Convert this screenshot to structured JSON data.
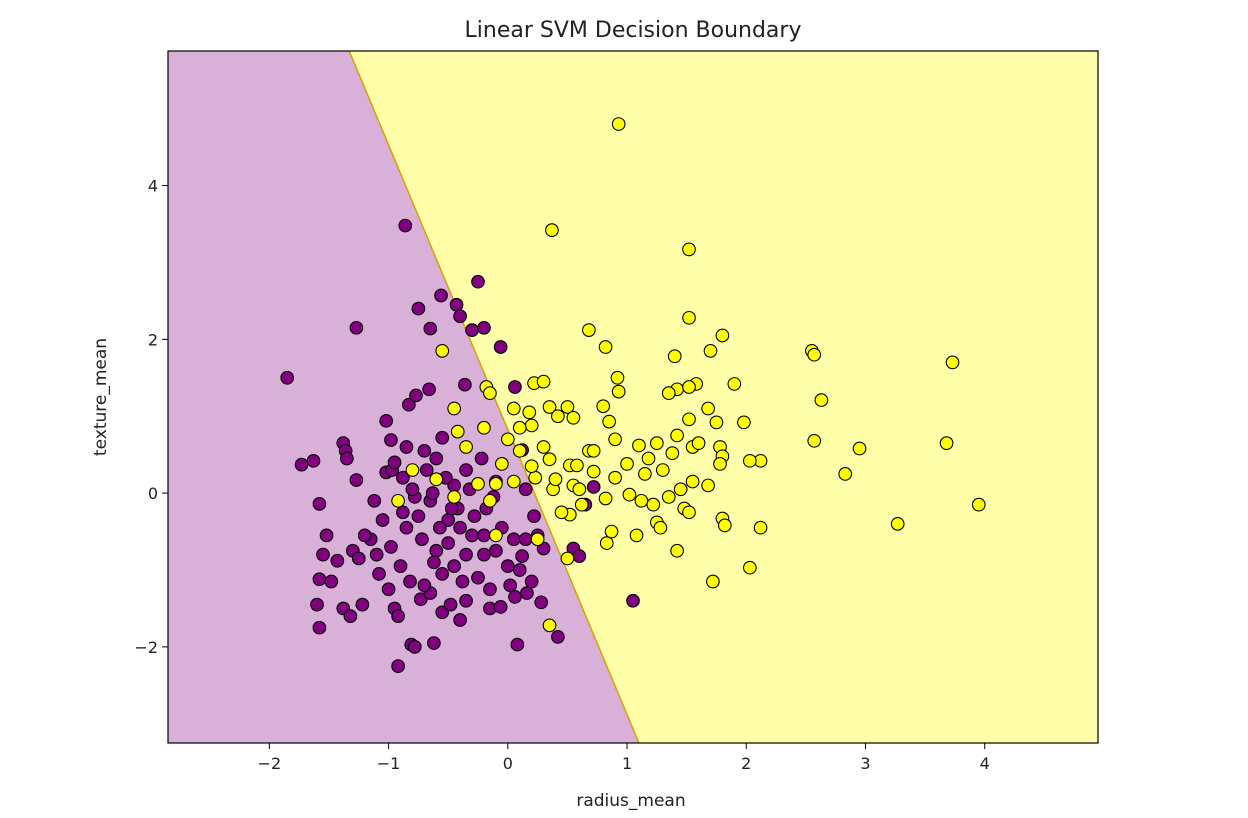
{
  "chart_data": {
    "type": "scatter",
    "title": "Linear SVM Decision Boundary",
    "xlabel": "radius_mean",
    "ylabel": "texture_mean",
    "xlim": [
      -2.85,
      4.95
    ],
    "ylim": [
      -3.25,
      5.75
    ],
    "xticks": [
      -2,
      -1,
      0,
      1,
      2,
      3,
      4
    ],
    "yticks": [
      -2,
      0,
      2,
      4
    ],
    "xtick_labels": [
      "−2",
      "−1",
      "0",
      "1",
      "2",
      "3",
      "4"
    ],
    "ytick_labels": [
      "−2",
      "0",
      "2",
      "4"
    ],
    "grid": false,
    "decision_boundary": {
      "type": "line",
      "points": [
        [
          -1.33,
          5.75
        ],
        [
          1.1,
          -3.25
        ]
      ]
    },
    "colors": {
      "class_0_point": "#800080",
      "class_1_point": "#ffff00",
      "class_0_region": "#d8b0d8",
      "class_1_region": "#ffffaa",
      "edge": "#000000"
    },
    "series": [
      {
        "class": 0,
        "points": [
          [
            -1.85,
            1.5
          ],
          [
            -0.86,
            3.48
          ],
          [
            -0.25,
            2.75
          ],
          [
            -0.56,
            2.57
          ],
          [
            -0.43,
            2.45
          ],
          [
            -0.75,
            2.4
          ],
          [
            -1.27,
            2.15
          ],
          [
            -0.65,
            2.14
          ],
          [
            -0.3,
            2.12
          ],
          [
            -0.2,
            2.15
          ],
          [
            -0.4,
            2.3
          ],
          [
            -0.06,
            1.9
          ],
          [
            -0.66,
            1.35
          ],
          [
            -0.83,
            1.15
          ],
          [
            -0.77,
            1.27
          ],
          [
            -0.36,
            1.41
          ],
          [
            0.06,
            1.38
          ],
          [
            -1.02,
            0.94
          ],
          [
            -1.38,
            0.65
          ],
          [
            -1.36,
            0.55
          ],
          [
            -1.63,
            0.42
          ],
          [
            -1.73,
            0.37
          ],
          [
            -1.35,
            0.45
          ],
          [
            -0.98,
            0.69
          ],
          [
            -1.02,
            0.27
          ],
          [
            -0.97,
            0.3
          ],
          [
            -1.27,
            0.17
          ],
          [
            -1.58,
            -0.14
          ],
          [
            -1.52,
            -0.55
          ],
          [
            -1.55,
            -0.8
          ],
          [
            -1.58,
            -1.12
          ],
          [
            -1.48,
            -1.15
          ],
          [
            -1.6,
            -1.45
          ],
          [
            -1.58,
            -1.75
          ],
          [
            -1.38,
            -1.5
          ],
          [
            -1.32,
            -1.6
          ],
          [
            -1.22,
            -1.45
          ],
          [
            -1.43,
            -0.88
          ],
          [
            -1.3,
            -0.75
          ],
          [
            -1.25,
            -0.85
          ],
          [
            -1.15,
            -0.6
          ],
          [
            -1.08,
            -1.05
          ],
          [
            -0.95,
            -1.5
          ],
          [
            -0.92,
            -1.6
          ],
          [
            -0.81,
            -1.97
          ],
          [
            -0.78,
            -2.0
          ],
          [
            -0.92,
            -2.25
          ],
          [
            -0.62,
            -1.95
          ],
          [
            -0.73,
            -1.38
          ],
          [
            -0.65,
            -1.3
          ],
          [
            -0.55,
            -1.55
          ],
          [
            -0.48,
            -1.45
          ],
          [
            -0.4,
            -1.65
          ],
          [
            -0.35,
            -1.4
          ],
          [
            -0.15,
            -1.5
          ],
          [
            -0.06,
            -1.48
          ],
          [
            0.06,
            -1.35
          ],
          [
            0.16,
            -1.3
          ],
          [
            0.08,
            -1.97
          ],
          [
            0.42,
            -1.87
          ],
          [
            0.28,
            -1.42
          ],
          [
            0.2,
            -1.15
          ],
          [
            0.1,
            -1.0
          ],
          [
            0.12,
            -0.82
          ],
          [
            0.25,
            -0.55
          ],
          [
            0.55,
            -0.72
          ],
          [
            0.6,
            -0.82
          ],
          [
            -0.85,
            -0.45
          ],
          [
            -0.75,
            -0.3
          ],
          [
            -0.65,
            -0.1
          ],
          [
            -0.5,
            -0.35
          ],
          [
            -0.45,
            0.1
          ],
          [
            -0.35,
            0.3
          ],
          [
            -0.3,
            -0.55
          ],
          [
            -0.2,
            -0.8
          ],
          [
            -0.18,
            -0.2
          ],
          [
            -0.1,
            0.15
          ],
          [
            -0.05,
            -0.45
          ],
          [
            0.0,
            -0.95
          ],
          [
            0.05,
            -0.6
          ],
          [
            0.12,
            0.56
          ],
          [
            0.15,
            0.05
          ],
          [
            -0.55,
            0.72
          ],
          [
            -0.7,
            0.55
          ],
          [
            -0.85,
            0.6
          ],
          [
            -0.95,
            0.4
          ],
          [
            -0.88,
            0.2
          ],
          [
            -0.78,
            -0.05
          ],
          [
            -0.72,
            -0.6
          ],
          [
            -0.6,
            -0.75
          ],
          [
            -0.55,
            -1.05
          ],
          [
            -0.45,
            -0.95
          ],
          [
            -0.35,
            -0.8
          ],
          [
            -0.25,
            -1.1
          ],
          [
            -0.15,
            -1.25
          ],
          [
            -1.12,
            -0.1
          ],
          [
            -1.05,
            -0.35
          ],
          [
            -0.98,
            -0.7
          ],
          [
            -0.9,
            -0.95
          ],
          [
            -0.82,
            -1.15
          ],
          [
            -0.7,
            -1.2
          ],
          [
            -0.62,
            -0.9
          ],
          [
            -0.5,
            -0.65
          ],
          [
            -0.4,
            -0.45
          ],
          [
            -0.28,
            -0.3
          ],
          [
            -0.2,
            -0.55
          ],
          [
            -0.1,
            -0.75
          ],
          [
            -1.2,
            -0.55
          ],
          [
            -1.1,
            -0.8
          ],
          [
            -1.0,
            -1.25
          ],
          [
            -0.88,
            -0.25
          ],
          [
            -0.8,
            0.05
          ],
          [
            -0.68,
            0.3
          ],
          [
            -0.6,
            0.45
          ],
          [
            -0.52,
            0.2
          ],
          [
            -0.42,
            -0.2
          ],
          [
            -0.32,
            0.05
          ],
          [
            -0.22,
            0.45
          ],
          [
            -0.12,
            -0.05
          ],
          [
            0.02,
            -1.2
          ],
          [
            0.15,
            -0.6
          ],
          [
            0.3,
            -0.72
          ],
          [
            0.22,
            -0.3
          ],
          [
            1.05,
            -1.4
          ],
          [
            0.72,
            0.08
          ],
          [
            0.65,
            -0.15
          ],
          [
            -0.63,
            0.0
          ],
          [
            -0.57,
            -0.45
          ],
          [
            -0.47,
            -0.2
          ],
          [
            -0.38,
            -1.15
          ]
        ]
      },
      {
        "class": 1,
        "points": [
          [
            0.93,
            4.8
          ],
          [
            0.37,
            3.42
          ],
          [
            1.52,
            3.17
          ],
          [
            -0.55,
            1.85
          ],
          [
            0.68,
            2.12
          ],
          [
            0.82,
            1.9
          ],
          [
            0.92,
            1.5
          ],
          [
            1.52,
            2.28
          ],
          [
            1.8,
            2.05
          ],
          [
            1.4,
            1.78
          ],
          [
            1.7,
            1.85
          ],
          [
            1.9,
            1.42
          ],
          [
            2.55,
            1.85
          ],
          [
            2.57,
            1.8
          ],
          [
            3.73,
            1.7
          ],
          [
            2.63,
            1.21
          ],
          [
            1.42,
            1.35
          ],
          [
            1.58,
            1.42
          ],
          [
            1.52,
            1.38
          ],
          [
            1.35,
            1.3
          ],
          [
            0.8,
            1.13
          ],
          [
            0.93,
            1.32
          ],
          [
            0.22,
            1.43
          ],
          [
            0.3,
            1.45
          ],
          [
            -0.18,
            1.38
          ],
          [
            -0.15,
            1.3
          ],
          [
            0.05,
            1.1
          ],
          [
            -0.45,
            1.1
          ],
          [
            0.35,
            1.12
          ],
          [
            0.5,
            1.12
          ],
          [
            0.42,
            1.0
          ],
          [
            0.55,
            0.98
          ],
          [
            0.85,
            0.93
          ],
          [
            1.52,
            0.96
          ],
          [
            1.68,
            1.1
          ],
          [
            1.75,
            0.92
          ],
          [
            1.98,
            0.92
          ],
          [
            2.57,
            0.68
          ],
          [
            2.95,
            0.58
          ],
          [
            3.68,
            0.65
          ],
          [
            2.12,
            0.42
          ],
          [
            2.83,
            0.25
          ],
          [
            0.9,
            0.7
          ],
          [
            1.1,
            0.62
          ],
          [
            1.25,
            0.65
          ],
          [
            1.42,
            0.75
          ],
          [
            1.55,
            0.6
          ],
          [
            1.78,
            0.6
          ],
          [
            1.8,
            0.48
          ],
          [
            0.68,
            0.55
          ],
          [
            0.72,
            0.55
          ],
          [
            0.52,
            0.36
          ],
          [
            0.35,
            0.44
          ],
          [
            0.1,
            0.55
          ],
          [
            0.0,
            0.7
          ],
          [
            -0.2,
            0.85
          ],
          [
            -0.42,
            0.8
          ],
          [
            -0.35,
            0.6
          ],
          [
            0.2,
            0.88
          ],
          [
            1.0,
            0.38
          ],
          [
            1.18,
            0.45
          ],
          [
            1.3,
            0.3
          ],
          [
            1.15,
            0.25
          ],
          [
            0.9,
            0.2
          ],
          [
            0.72,
            0.28
          ],
          [
            0.55,
            0.1
          ],
          [
            0.38,
            0.05
          ],
          [
            0.23,
            0.2
          ],
          [
            0.05,
            0.15
          ],
          [
            -0.1,
            0.12
          ],
          [
            1.55,
            0.15
          ],
          [
            1.68,
            0.1
          ],
          [
            1.78,
            0.38
          ],
          [
            1.45,
            0.05
          ],
          [
            1.48,
            -0.2
          ],
          [
            1.22,
            -0.15
          ],
          [
            1.02,
            -0.02
          ],
          [
            0.82,
            -0.07
          ],
          [
            0.62,
            -0.15
          ],
          [
            0.52,
            -0.28
          ],
          [
            1.35,
            -0.05
          ],
          [
            1.12,
            -0.1
          ],
          [
            1.52,
            -0.25
          ],
          [
            1.8,
            -0.33
          ],
          [
            1.82,
            -0.42
          ],
          [
            2.12,
            -0.45
          ],
          [
            1.25,
            -0.38
          ],
          [
            1.28,
            -0.45
          ],
          [
            1.08,
            -0.55
          ],
          [
            0.87,
            -0.5
          ],
          [
            0.83,
            -0.65
          ],
          [
            1.42,
            -0.75
          ],
          [
            1.72,
            -1.15
          ],
          [
            2.03,
            -0.97
          ],
          [
            3.27,
            -0.4
          ],
          [
            3.95,
            -0.15
          ],
          [
            0.35,
            -1.72
          ],
          [
            0.5,
            -0.85
          ],
          [
            0.4,
            0.18
          ],
          [
            0.2,
            0.35
          ],
          [
            -0.05,
            0.38
          ],
          [
            -0.25,
            0.12
          ],
          [
            -0.15,
            -0.1
          ],
          [
            -0.45,
            -0.05
          ],
          [
            -0.6,
            0.18
          ],
          [
            -0.8,
            0.3
          ],
          [
            -0.92,
            -0.1
          ],
          [
            0.25,
            -0.6
          ],
          [
            -0.1,
            -0.55
          ],
          [
            0.1,
            0.85
          ],
          [
            0.45,
            -0.25
          ],
          [
            0.6,
            0.05
          ],
          [
            0.3,
            0.6
          ],
          [
            1.6,
            0.65
          ],
          [
            2.03,
            0.42
          ],
          [
            1.38,
            0.52
          ],
          [
            0.18,
            1.05
          ],
          [
            0.58,
            0.36
          ]
        ]
      }
    ]
  }
}
